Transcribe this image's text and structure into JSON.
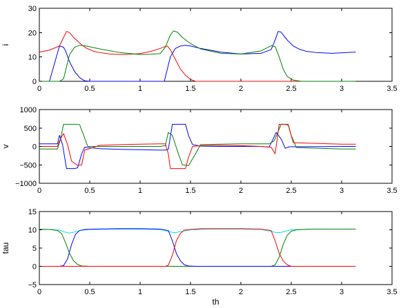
{
  "chart_data": [
    {
      "type": "line",
      "title": "",
      "xlabel": "",
      "ylabel": "i",
      "xlim": [
        0,
        3.5
      ],
      "ylim": [
        0,
        30
      ],
      "xticks": [
        0,
        0.5,
        1,
        1.5,
        2,
        2.5,
        3,
        3.5
      ],
      "yticks": [
        0,
        10,
        20,
        30
      ],
      "xtick_labels": [
        "0",
        "0.5",
        "1",
        "1.5",
        "2",
        "2.5",
        "3",
        "3.5"
      ],
      "ytick_labels": [
        "0",
        "10",
        "20",
        "30"
      ],
      "grid": false,
      "series": [
        {
          "color": "#ff0000",
          "x": [
            0,
            0.1,
            0.2,
            0.24,
            0.27,
            0.3,
            0.34,
            0.38,
            0.42,
            0.46,
            0.5,
            0.55,
            0.6,
            0.7,
            0.8,
            0.9,
            1.0,
            1.1,
            1.2,
            1.25,
            1.27,
            1.3,
            1.35,
            1.4,
            1.45,
            1.5,
            1.55,
            3.14
          ],
          "y": [
            12,
            12.8,
            14.5,
            18,
            20.5,
            20,
            18,
            16.5,
            15,
            13.8,
            13,
            12.2,
            11.8,
            11.2,
            11,
            11.1,
            11.4,
            12.2,
            13.5,
            14.3,
            14.5,
            13,
            9,
            5,
            2.5,
            0.8,
            0,
            0
          ]
        },
        {
          "color": "#0000ff",
          "x": [
            0,
            0.1,
            0.2,
            0.24,
            0.26,
            0.3,
            0.35,
            0.4,
            0.45,
            0.5,
            1.24,
            1.27,
            1.3,
            1.35,
            1.4,
            1.45,
            1.5,
            1.6,
            1.8,
            2.0,
            2.2,
            2.3,
            2.34,
            2.37,
            2.4,
            2.43,
            2.47,
            2.52,
            2.58,
            2.65,
            2.75,
            2.9,
            3.0,
            3.14
          ],
          "y": [
            0,
            0,
            14.5,
            14,
            12.5,
            8,
            4,
            1.5,
            0.2,
            0,
            0,
            5,
            10,
            13.5,
            14.5,
            14.8,
            14.5,
            13.5,
            12,
            11.2,
            11.5,
            13,
            17,
            20.5,
            20.2,
            18.5,
            16.5,
            14.5,
            13.2,
            12.3,
            11.8,
            11.5,
            11.7,
            12
          ]
        },
        {
          "color": "#008000",
          "x": [
            0,
            0.1,
            0.2,
            0.24,
            0.27,
            0.3,
            0.35,
            0.4,
            0.45,
            0.5,
            0.6,
            0.8,
            1.0,
            1.1,
            1.2,
            1.25,
            1.3,
            1.33,
            1.37,
            1.42,
            1.5,
            1.6,
            1.8,
            2.0,
            2.2,
            2.3,
            2.34,
            2.38,
            2.42,
            2.46,
            2.52,
            2.6,
            3.14
          ],
          "y": [
            0,
            0,
            0,
            1,
            6,
            11,
            14,
            14.8,
            14.6,
            14.2,
            13.3,
            11.8,
            11,
            11.1,
            11.4,
            14,
            19,
            20.7,
            20.2,
            18,
            15.5,
            13.3,
            11.5,
            11.2,
            12.5,
            14.6,
            14.3,
            10,
            5,
            2,
            0.5,
            0,
            0
          ]
        }
      ]
    },
    {
      "type": "line",
      "title": "",
      "xlabel": "",
      "ylabel": "v",
      "xlim": [
        0,
        3.5
      ],
      "ylim": [
        -1000,
        1000
      ],
      "xticks": [
        0,
        0.5,
        1,
        1.5,
        2,
        2.5,
        3,
        3.5
      ],
      "yticks": [
        -1000,
        -500,
        0,
        500,
        1000
      ],
      "xtick_labels": [
        "0",
        "0.5",
        "1",
        "1.5",
        "2",
        "2.5",
        "3",
        "3.5"
      ],
      "ytick_labels": [
        "−1000",
        "−500",
        "0",
        "500",
        "1000"
      ],
      "grid": false,
      "series": [
        {
          "color": "#0000ff",
          "x": [
            0,
            0.1,
            0.18,
            0.2,
            0.23,
            0.27,
            0.35,
            0.38,
            0.42,
            0.45,
            0.6,
            0.8,
            1.0,
            1.2,
            1.25,
            1.28,
            1.32,
            1.45,
            1.48,
            1.52,
            1.6,
            1.8,
            2.0,
            2.2,
            2.28,
            2.32,
            2.35,
            2.4,
            2.44,
            2.48,
            3.14
          ],
          "y": [
            70,
            70,
            70,
            300,
            50,
            -600,
            -600,
            -580,
            -200,
            -20,
            -60,
            -80,
            -90,
            -100,
            -100,
            -80,
            600,
            600,
            300,
            50,
            10,
            0,
            0,
            0,
            -20,
            200,
            380,
            200,
            -50,
            -10,
            0
          ]
        },
        {
          "color": "#008000",
          "x": [
            0,
            0.1,
            0.18,
            0.21,
            0.24,
            0.3,
            0.37,
            0.4,
            0.44,
            0.48,
            0.6,
            0.8,
            1.0,
            1.2,
            1.25,
            1.28,
            1.32,
            1.38,
            1.42,
            1.48,
            1.55,
            1.6,
            1.8,
            2.0,
            2.2,
            2.28,
            2.33,
            2.4,
            2.47,
            2.5,
            2.55,
            3.0,
            3.14
          ],
          "y": [
            -70,
            -70,
            -70,
            200,
            600,
            600,
            600,
            590,
            300,
            0,
            0,
            0,
            0,
            0,
            20,
            380,
            300,
            -200,
            -500,
            -520,
            -200,
            50,
            60,
            70,
            70,
            70,
            150,
            600,
            600,
            300,
            -30,
            -70,
            -70
          ]
        },
        {
          "color": "#ff0000",
          "x": [
            0,
            0.1,
            0.18,
            0.2,
            0.24,
            0.28,
            0.32,
            0.38,
            0.42,
            0.45,
            0.6,
            0.8,
            1.0,
            1.2,
            1.25,
            1.28,
            1.3,
            1.45,
            1.48,
            1.52,
            1.6,
            1.8,
            2.0,
            2.2,
            2.3,
            2.34,
            2.38,
            2.43,
            2.47,
            2.52,
            3.0,
            3.14
          ],
          "y": [
            0,
            0,
            0,
            150,
            350,
            50,
            -400,
            -520,
            -500,
            -100,
            30,
            50,
            60,
            70,
            70,
            -200,
            -600,
            -600,
            -300,
            0,
            20,
            30,
            20,
            0,
            -20,
            -200,
            600,
            600,
            580,
            100,
            60,
            60
          ]
        }
      ]
    },
    {
      "type": "line",
      "title": "",
      "xlabel": "th",
      "ylabel": "tau",
      "xlim": [
        0,
        3.5
      ],
      "ylim": [
        -5,
        15
      ],
      "xticks": [
        0,
        0.5,
        1,
        1.5,
        2,
        2.5,
        3,
        3.5
      ],
      "yticks": [
        -5,
        0,
        5,
        10,
        15
      ],
      "xtick_labels": [
        "0",
        "0.5",
        "1",
        "1.5",
        "2",
        "2.5",
        "3",
        "3.5"
      ],
      "ytick_labels": [
        "−5",
        "0",
        "5",
        "10",
        "15"
      ],
      "grid": false,
      "series": [
        {
          "color": "#00e0e0",
          "x": [
            0,
            0.1,
            0.2,
            0.25,
            0.3,
            0.35,
            0.4,
            0.5,
            0.7,
            1.0,
            1.2,
            1.3,
            1.35,
            1.4,
            1.5,
            1.7,
            2.0,
            2.2,
            2.3,
            2.35,
            2.4,
            2.45,
            2.5,
            2.7,
            3.0,
            3.14
          ],
          "y": [
            10.2,
            10.1,
            9.9,
            9.4,
            9.1,
            9.4,
            9.8,
            10.1,
            10.2,
            10.2,
            10.1,
            9.4,
            9.2,
            9.5,
            10.0,
            10.2,
            10.2,
            10.1,
            9.6,
            9.2,
            9.3,
            9.7,
            10.0,
            10.2,
            10.2,
            10.2
          ]
        },
        {
          "color": "#008000",
          "x": [
            0,
            0.1,
            0.18,
            0.22,
            0.26,
            0.3,
            0.34,
            0.38,
            0.42,
            0.5,
            2.3,
            2.34,
            2.38,
            2.42,
            2.46,
            2.5,
            2.55,
            2.7,
            3.0,
            3.14
          ],
          "y": [
            10.1,
            10.1,
            9.8,
            9,
            6.5,
            3.5,
            1.5,
            0.5,
            0.1,
            0,
            0,
            0.4,
            2.5,
            6,
            8.5,
            9.6,
            10,
            10.2,
            10.2,
            10.2
          ]
        },
        {
          "color": "#0000ff",
          "x": [
            0,
            0.2,
            0.24,
            0.28,
            0.32,
            0.36,
            0.4,
            0.45,
            0.55,
            0.8,
            1.0,
            1.2,
            1.28,
            1.32,
            1.36,
            1.4,
            1.44,
            1.48,
            1.55,
            3.14
          ],
          "y": [
            0,
            0,
            0.2,
            2,
            6,
            8.8,
            9.8,
            10.1,
            10.2,
            10.3,
            10.3,
            10.2,
            9.8,
            7,
            3.5,
            1.5,
            0.4,
            0.1,
            0,
            0
          ]
        },
        {
          "color": "#ff0000",
          "x": [
            0,
            1.25,
            1.28,
            1.32,
            1.36,
            1.4,
            1.44,
            1.5,
            1.6,
            1.8,
            2.0,
            2.2,
            2.3,
            2.34,
            2.38,
            2.42,
            2.46,
            2.5,
            3.14
          ],
          "y": [
            0,
            0,
            0.3,
            3,
            7,
            9,
            9.9,
            10.1,
            10.3,
            10.3,
            10.3,
            10.2,
            9.8,
            7,
            3.5,
            1.5,
            0.4,
            0,
            0
          ]
        }
      ]
    }
  ]
}
